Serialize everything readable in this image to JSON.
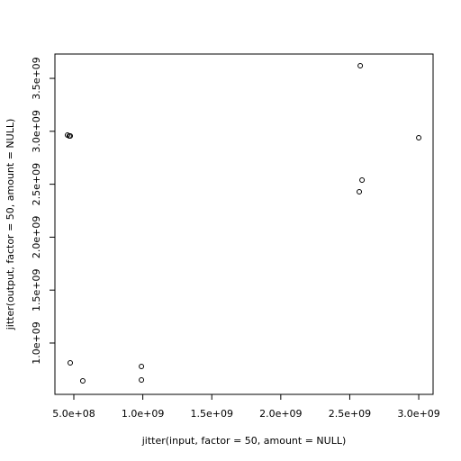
{
  "chart_data": {
    "type": "scatter",
    "xlabel": "jitter(input, factor = 50, amount = NULL)",
    "ylabel": "jitter(output, factor = 50, amount = NULL)",
    "x": [
      454000000,
      467000000,
      474000000,
      474000000,
      565000000,
      990000000,
      990000000,
      2576000000,
      2569000000,
      2589000000,
      3000000000
    ],
    "values": [
      2964000000,
      2956000000,
      2956000000,
      813000000,
      643000000,
      779000000,
      651000000,
      3619000000,
      2429000000,
      2539000000,
      2939000000
    ],
    "color": "#000000",
    "xlim": [
      363000000,
      3104000000
    ],
    "ylim": [
      515000000,
      3730000000
    ],
    "xticks": [
      {
        "value": 500000000,
        "label": "5.0e+08"
      },
      {
        "value": 1000000000,
        "label": "1.0e+09"
      },
      {
        "value": 1500000000,
        "label": "1.5e+09"
      },
      {
        "value": 2000000000,
        "label": "2.0e+09"
      },
      {
        "value": 2500000000,
        "label": "2.5e+09"
      },
      {
        "value": 3000000000,
        "label": "3.0e+09"
      }
    ],
    "yticks": [
      {
        "value": 1000000000,
        "label": "1.0e+09"
      },
      {
        "value": 1500000000,
        "label": "1.5e+09"
      },
      {
        "value": 2000000000,
        "label": "2.0e+09"
      },
      {
        "value": 2500000000,
        "label": "2.5e+09"
      },
      {
        "value": 3000000000,
        "label": "3.0e+09"
      },
      {
        "value": 3500000000,
        "label": "3.5e+09"
      }
    ]
  }
}
